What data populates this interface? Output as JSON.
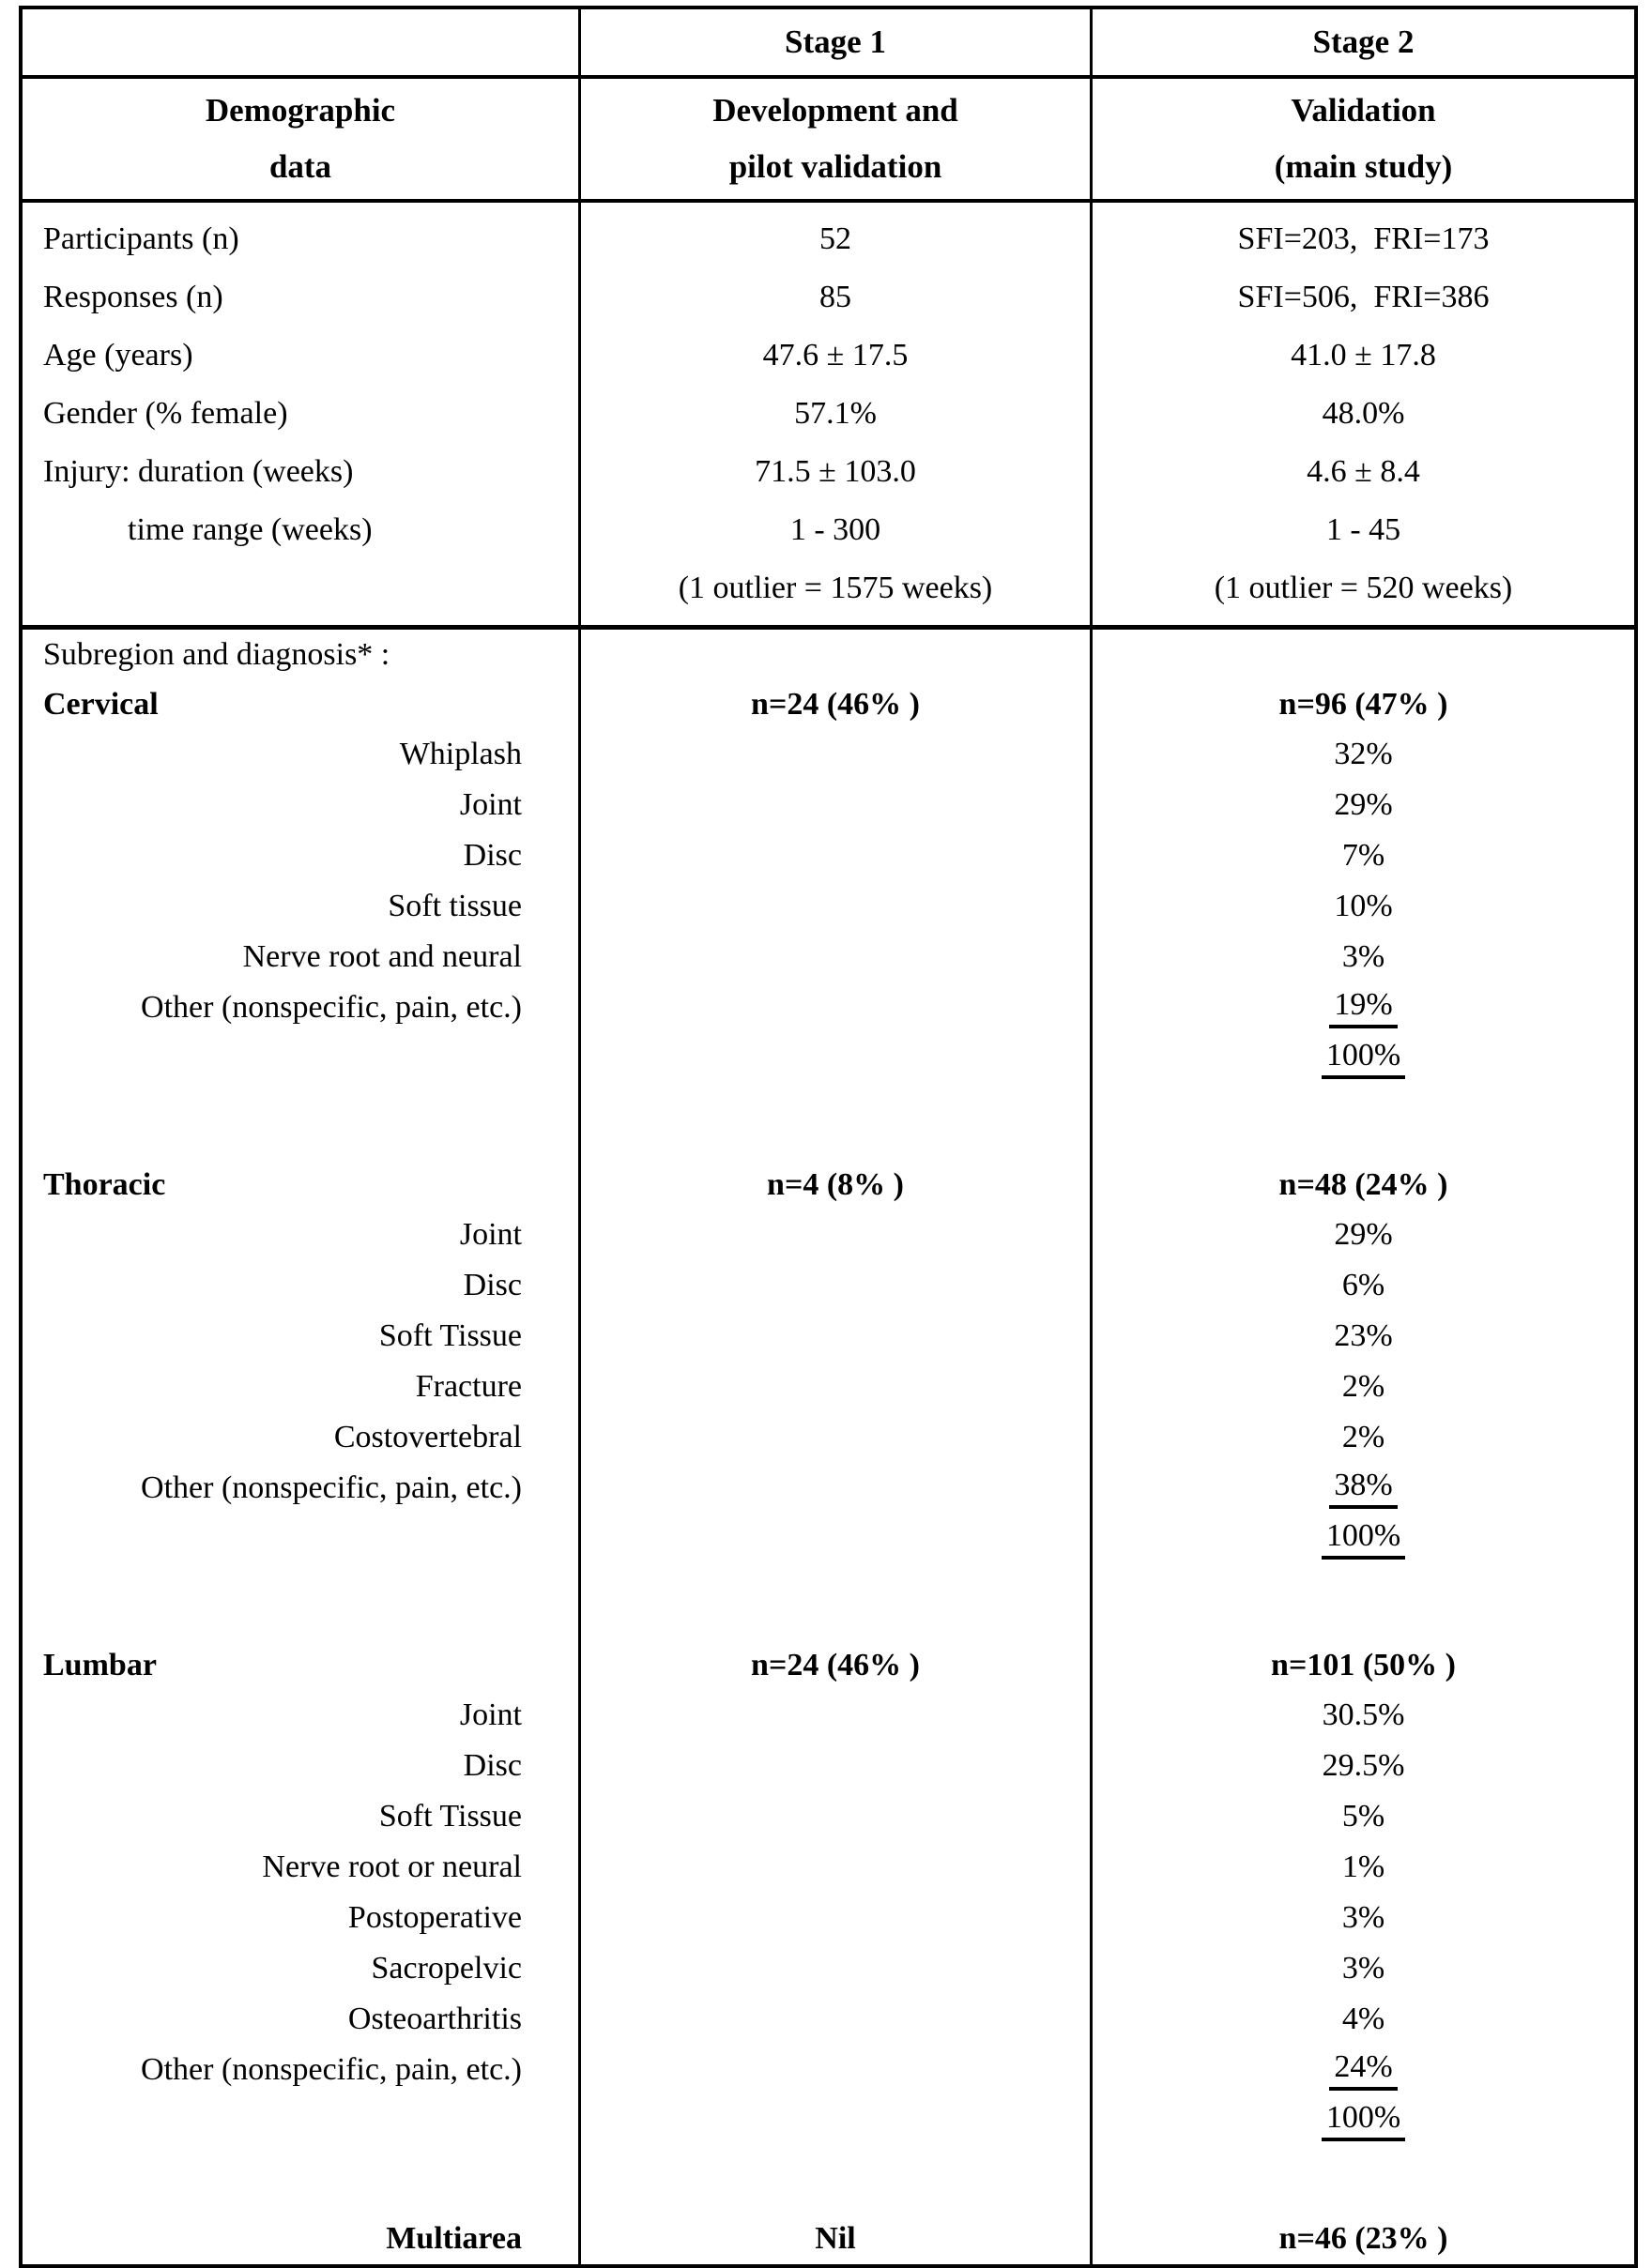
{
  "header": {
    "stage1": "Stage 1",
    "stage2": "Stage 2",
    "col0": [
      "Demographic",
      "data"
    ],
    "col1": [
      "Development and",
      "pilot validation"
    ],
    "col2": [
      "Validation",
      "(main study)"
    ]
  },
  "demographics": {
    "rows": [
      {
        "label": "Participants (n)",
        "stage1": "52",
        "stage2": "SFI=203,  FRI=173"
      },
      {
        "label": "Responses (n)",
        "stage1": "85",
        "stage2": "SFI=506,  FRI=386"
      },
      {
        "label": "Age (years)",
        "stage1": "47.6 ± 17.5",
        "stage2": "41.0 ± 17.8"
      },
      {
        "label": "Gender (% female)",
        "stage1": "57.1%",
        "stage2": "48.0%"
      },
      {
        "label": "Injury: duration (weeks)",
        "stage1": "71.5 ± 103.0",
        "stage2": "4.6 ± 8.4"
      },
      {
        "label": "time range (weeks)",
        "stage1": "1 - 300",
        "stage2": "1 - 45"
      },
      {
        "label": "",
        "stage1": "(1 outlier = 1575 weeks)",
        "stage2": "(1 outlier = 520 weeks)"
      }
    ]
  },
  "subregion": {
    "intro": "Subregion and diagnosis* :",
    "groups": [
      {
        "name": "Cervical",
        "stage1": "n=24 (46% )",
        "stage2": "n=96 (47% )",
        "items": [
          {
            "label": "Whiplash",
            "value": "32%"
          },
          {
            "label": "Joint",
            "value": "29%"
          },
          {
            "label": "Disc",
            "value": "7%"
          },
          {
            "label": "Soft tissue",
            "value": "10%"
          },
          {
            "label": "Nerve root and neural",
            "value": "3%"
          },
          {
            "label": "Other (nonspecific, pain, etc.)",
            "value": "19%"
          },
          {
            "label": "",
            "value": "100%"
          }
        ]
      },
      {
        "name": "Thoracic",
        "stage1": "n=4 (8% )",
        "stage2": "n=48 (24% )",
        "items": [
          {
            "label": "Joint",
            "value": "29%"
          },
          {
            "label": "Disc",
            "value": "6%"
          },
          {
            "label": "Soft Tissue",
            "value": "23%"
          },
          {
            "label": "Fracture",
            "value": "2%"
          },
          {
            "label": "Costovertebral",
            "value": "2%"
          },
          {
            "label": "Other (nonspecific, pain, etc.)",
            "value": "38%"
          },
          {
            "label": "",
            "value": "100%"
          }
        ]
      },
      {
        "name": "Lumbar",
        "stage1": "n=24 (46% )",
        "stage2": "n=101 (50% )",
        "items": [
          {
            "label": "Joint",
            "value": "30.5%"
          },
          {
            "label": "Disc",
            "value": "29.5%"
          },
          {
            "label": "Soft Tissue",
            "value": "5%"
          },
          {
            "label": "Nerve root or neural",
            "value": "1%"
          },
          {
            "label": "Postoperative",
            "value": "3%"
          },
          {
            "label": "Sacropelvic",
            "value": "3%"
          },
          {
            "label": "Osteoarthritis",
            "value": "4%"
          },
          {
            "label": "Other (nonspecific, pain, etc.)",
            "value": "24%"
          },
          {
            "label": "",
            "value": "100%"
          }
        ]
      }
    ],
    "multiarea": {
      "label": "Multiarea",
      "stage1": "Nil",
      "stage2": "n=46 (23% )"
    }
  }
}
